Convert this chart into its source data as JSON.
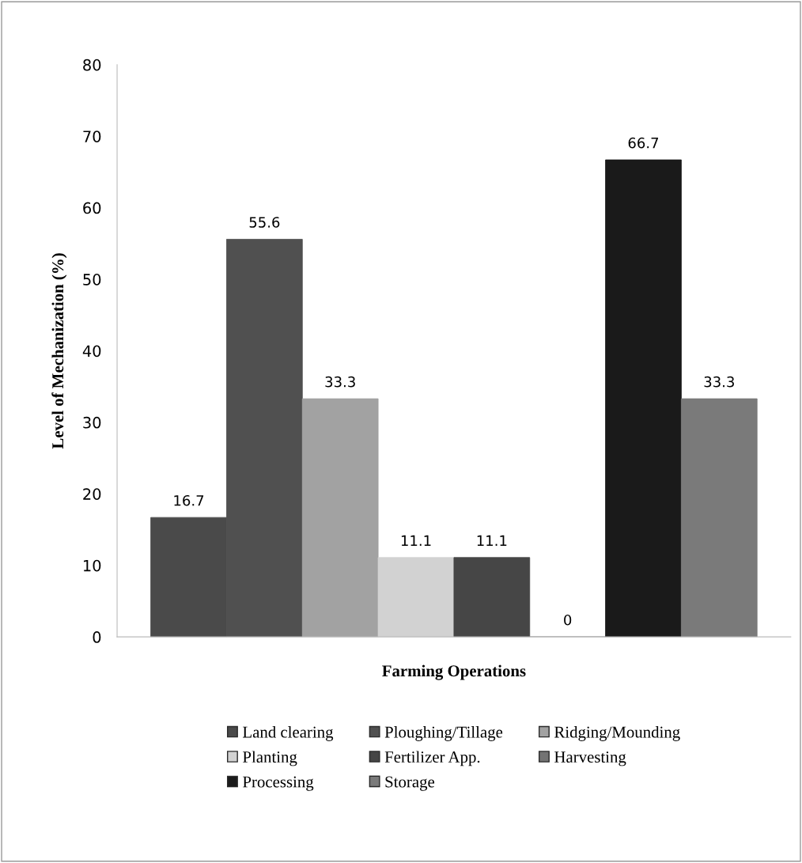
{
  "chart_data": {
    "type": "bar",
    "xlabel": "Farming Operations",
    "ylabel": "Level of Mechanization (%)",
    "categories": [
      null
    ],
    "series": [
      {
        "name": "Land clearing",
        "color": "#4a4a4a",
        "values": [
          16.7
        ]
      },
      {
        "name": "Ploughing/Tillage",
        "color": "#505050",
        "values": [
          55.6
        ]
      },
      {
        "name": "Ridging/Mounding",
        "color": "#a2a2a2",
        "values": [
          33.3
        ]
      },
      {
        "name": "Planting",
        "color": "#d2d2d2",
        "values": [
          11.1
        ]
      },
      {
        "name": "Fertilizer App.",
        "color": "#464646",
        "values": [
          11.1
        ]
      },
      {
        "name": "Harvesting",
        "color": "#737373",
        "values": [
          0
        ]
      },
      {
        "name": "Processing",
        "color": "#1a1a1a",
        "values": [
          66.7
        ]
      },
      {
        "name": "Storage",
        "color": "#7a7a7a",
        "values": [
          33.3
        ]
      }
    ],
    "ylim": [
      0,
      80
    ],
    "yticks": [
      0,
      10,
      20,
      30,
      40,
      50,
      60,
      70,
      80
    ],
    "data_labels": true,
    "grid": false,
    "legend": "bottom"
  }
}
